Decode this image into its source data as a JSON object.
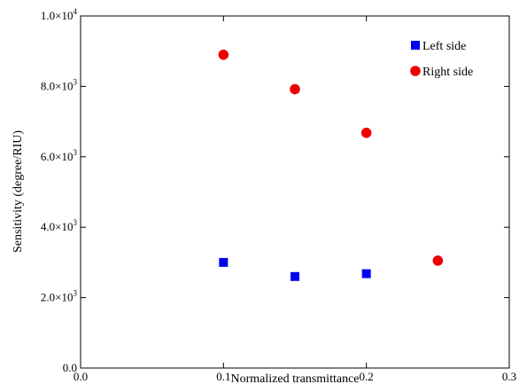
{
  "chart_data": {
    "type": "scatter",
    "title": "",
    "xlabel": "Normalized transmittance",
    "ylabel": "Sensitivity (degree/RIU)",
    "xlim": [
      0.0,
      0.3
    ],
    "ylim": [
      0,
      10000
    ],
    "x_ticks": [
      {
        "value": 0.0,
        "label": "0.0"
      },
      {
        "value": 0.1,
        "label": "0.1"
      },
      {
        "value": 0.2,
        "label": "0.2"
      },
      {
        "value": 0.3,
        "label": "0.3"
      }
    ],
    "y_ticks": [
      {
        "value": 0,
        "mant": "0.0",
        "exp": ""
      },
      {
        "value": 2000,
        "mant": "2.0×10",
        "exp": "3"
      },
      {
        "value": 4000,
        "mant": "4.0×10",
        "exp": "3"
      },
      {
        "value": 6000,
        "mant": "6.0×10",
        "exp": "3"
      },
      {
        "value": 8000,
        "mant": "8.0×10",
        "exp": "3"
      },
      {
        "value": 10000,
        "mant": "1.0×10",
        "exp": "4"
      }
    ],
    "grid": false,
    "legend_position": "top-right",
    "series": [
      {
        "name": "Left side",
        "marker": "square",
        "color": "#0000ee",
        "points": [
          {
            "x": 0.1,
            "y": 3000
          },
          {
            "x": 0.15,
            "y": 2600
          },
          {
            "x": 0.2,
            "y": 2680
          }
        ]
      },
      {
        "name": "Right side",
        "marker": "circle",
        "color": "#ee0000",
        "points": [
          {
            "x": 0.1,
            "y": 8900
          },
          {
            "x": 0.15,
            "y": 7920
          },
          {
            "x": 0.2,
            "y": 6680
          },
          {
            "x": 0.25,
            "y": 3050
          }
        ]
      }
    ]
  }
}
